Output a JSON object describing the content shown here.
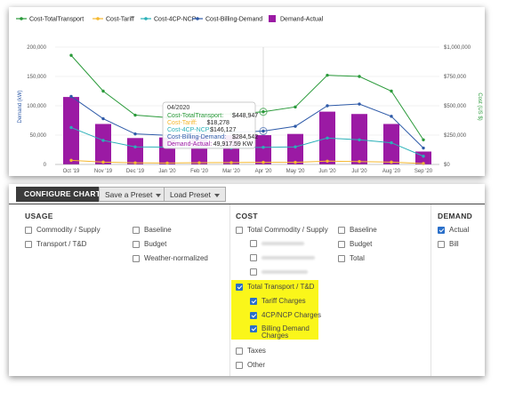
{
  "chart": {
    "legend": [
      "Cost-TotalTransport",
      "Cost-Tariff",
      "Cost-4CP-NCP",
      "Cost-Billing-Demand",
      "Demand-Actual"
    ],
    "colors": {
      "total_transport": "#2a9a3a",
      "tariff": "#f5b82e",
      "cp_ncp": "#2ab0b8",
      "billing_demand": "#2e5aa8",
      "demand_actual": "#9b1aa4",
      "highlight": "#faf61a"
    },
    "left_axis_title": "Demand (kW)",
    "right_axis_title": "Cost (US $)",
    "left_ticks": [
      "0",
      "50,000",
      "100,000",
      "150,000",
      "200,000"
    ],
    "right_ticks": [
      "$0",
      "$250,000",
      "$500,000",
      "$750,000",
      "$1,000,000"
    ],
    "tooltip": {
      "title": "04/2020",
      "rows": [
        {
          "label": "Cost-TotalTransport:",
          "value": "$448,947"
        },
        {
          "label": "Cost-Tariff:",
          "value": "$18,278"
        },
        {
          "label": "Cost-4CP-NCP:",
          "value": "$146,127"
        },
        {
          "label": "Cost-Billing-Demand:",
          "value": "$284,542"
        },
        {
          "label": "Demand-Actual:",
          "value": "49,917.59 KW"
        }
      ]
    }
  },
  "chart_data": {
    "type": "bar",
    "categories": [
      "Oct '19",
      "Nov '19",
      "Dec '19",
      "Jan '20",
      "Feb '20",
      "Mar '20",
      "Apr '20",
      "May '20",
      "Jun '20",
      "Jul '20",
      "Aug '20",
      "Sep '20"
    ],
    "left_ylim": [
      0,
      200000
    ],
    "right_ylim": [
      0,
      1000000
    ],
    "grid": true,
    "legend_position": "top-left",
    "series": [
      {
        "name": "Demand-Actual",
        "type": "bar",
        "axis": "left",
        "values": [
          115000,
          69000,
          45000,
          46000,
          48000,
          50000,
          49918,
          52000,
          90000,
          86000,
          69000,
          22000
        ]
      },
      {
        "name": "Cost-TotalTransport",
        "type": "line",
        "axis": "right",
        "values": [
          930000,
          625000,
          420000,
          400000,
          430000,
          430000,
          448947,
          490000,
          760000,
          750000,
          625000,
          210000
        ]
      },
      {
        "name": "Cost-Tariff",
        "type": "line",
        "axis": "right",
        "values": [
          35000,
          20000,
          14000,
          12000,
          15000,
          16000,
          18278,
          18000,
          28000,
          25000,
          20000,
          8000
        ]
      },
      {
        "name": "Cost-4CP-NCP",
        "type": "line",
        "axis": "right",
        "values": [
          315000,
          205000,
          150000,
          148000,
          145000,
          140000,
          146127,
          150000,
          225000,
          210000,
          185000,
          70000
        ]
      },
      {
        "name": "Cost-Billing-Demand",
        "type": "line",
        "axis": "right",
        "values": [
          580000,
          390000,
          260000,
          248000,
          265000,
          275000,
          284542,
          325000,
          500000,
          515000,
          410000,
          140000
        ]
      }
    ]
  },
  "config": {
    "tab_label": "CONFIGURE CHART",
    "save_preset": "Save a Preset",
    "load_preset": "Load Preset",
    "usage": {
      "heading": "USAGE",
      "col1": [
        {
          "label": "Commodity / Supply",
          "checked": false
        },
        {
          "label": "Transport / T&D",
          "checked": false
        }
      ],
      "col2": [
        {
          "label": "Baseline",
          "checked": false
        },
        {
          "label": "Budget",
          "checked": false
        },
        {
          "label": "Weather-normalized",
          "checked": false
        }
      ]
    },
    "cost": {
      "heading": "COST",
      "total_commodity": "Total Commodity / Supply",
      "total_transport": "Total Transport / T&D",
      "tariff_charges": "Tariff Charges",
      "cp_charges": "4CP/NCP Charges",
      "billing_demand_charges": "Billing Demand Charges",
      "taxes": "Taxes",
      "other": "Other",
      "col2": [
        {
          "label": "Baseline"
        },
        {
          "label": "Budget"
        },
        {
          "label": "Total"
        }
      ]
    },
    "demand": {
      "heading": "DEMAND",
      "actual": "Actual",
      "bill": "Bill"
    }
  }
}
